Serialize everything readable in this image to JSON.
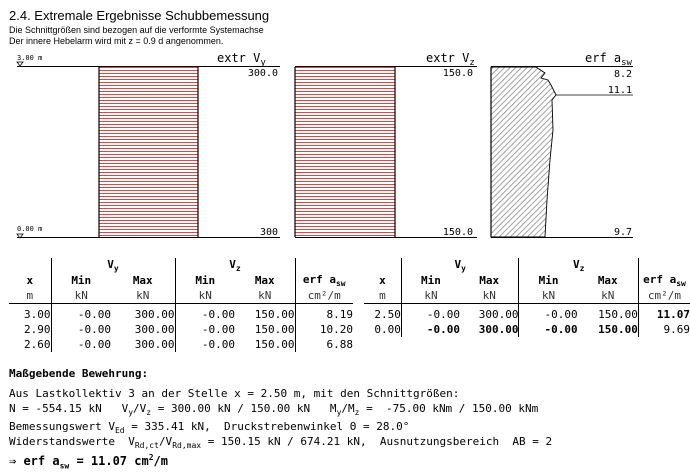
{
  "header": {
    "title": "2.4. Extremale Ergebnisse Schubbemessung",
    "subtitle1": "Die Schnittgrößen sind bezogen auf die verformte Systemachse",
    "subtitle2": "Der innere Hebelarm wird mit z = 0.9 d angenommen."
  },
  "diagram": {
    "top_label": "3.00 m",
    "bottom_label": "0.00 m",
    "panels": [
      {
        "name": "vy",
        "title": "extr V",
        "title_sub": "y",
        "top_value": "300.0",
        "bottom_value": "300"
      },
      {
        "name": "vz",
        "title": "extr V",
        "title_sub": "z",
        "top_value": "150.0",
        "bottom_value": "150.0"
      },
      {
        "name": "asw",
        "title": "erf a",
        "title_sub": "sw",
        "top_value": "8.2",
        "mid_value": "11.1",
        "bottom_value": "9.7"
      }
    ],
    "colors": {
      "hatch_red": "#d84a4a",
      "hatch_gray": "#8a8a8a"
    }
  },
  "table1": {
    "group_vy": "V",
    "group_vy_sub": "y",
    "group_vz": "V",
    "group_vz_sub": "z",
    "headers": [
      "x",
      "Min",
      "Max",
      "Min",
      "Max",
      "erf a"
    ],
    "header_asw_sub": "sw",
    "units": [
      "m",
      "kN",
      "kN",
      "kN",
      "kN",
      "cm²/m"
    ],
    "rows": [
      [
        "3.00",
        "-0.00",
        "300.00",
        "-0.00",
        "150.00",
        "8.19"
      ],
      [
        "2.90",
        "-0.00",
        "300.00",
        "-0.00",
        "150.00",
        "10.20"
      ],
      [
        "2.60",
        "-0.00",
        "300.00",
        "-0.00",
        "150.00",
        "6.88"
      ]
    ]
  },
  "table2": {
    "group_vy": "V",
    "group_vy_sub": "y",
    "group_vz": "V",
    "group_vz_sub": "z",
    "headers": [
      "x",
      "Min",
      "Max",
      "Min",
      "Max",
      "erf a"
    ],
    "header_asw_sub": "sw",
    "units": [
      "m",
      "kN",
      "kN",
      "kN",
      "kN",
      "cm²/m"
    ],
    "rows": [
      [
        "2.50",
        "-0.00",
        "300.00",
        "-0.00",
        "150.00",
        "11.07"
      ],
      [
        "0.00",
        "-0.00",
        "300.00",
        "-0.00",
        "150.00",
        "9.69"
      ]
    ]
  },
  "bemessung": {
    "heading": "Maßgebende Bewehrung:",
    "line1": "Aus Lastkollektiv 3 an der Stelle x = 2.50 m, mit den Schnittgrößen:",
    "line2a": "N = -554.15 kN   V",
    "line2b": "y",
    "line2c": "/V",
    "line2d": "z",
    "line2e": " = 300.00 kN / 150.00 kN   M",
    "line2f": "y",
    "line2g": "/M",
    "line2h": "z",
    "line2i": " =  -75.00 kNm / 150.00 kNm",
    "line3a": "Bemessungswert V",
    "line3b": "Ed",
    "line3c": " = 335.41 kN,  Druckstrebenwinkel Θ = 28.0°",
    "line4a": "Widerstandswerte  V",
    "line4b": "Rd,ct",
    "line4c": "/V",
    "line4d": "Rd,max",
    "line4e": " = 150.15 kN / 674.21 kN,  Ausnutzungsbereich  AB = 2",
    "result_a": "⇒ erf a",
    "result_b": "sw",
    "result_c": " = 11.07 cm",
    "result_d": "2",
    "result_e": "/m"
  }
}
